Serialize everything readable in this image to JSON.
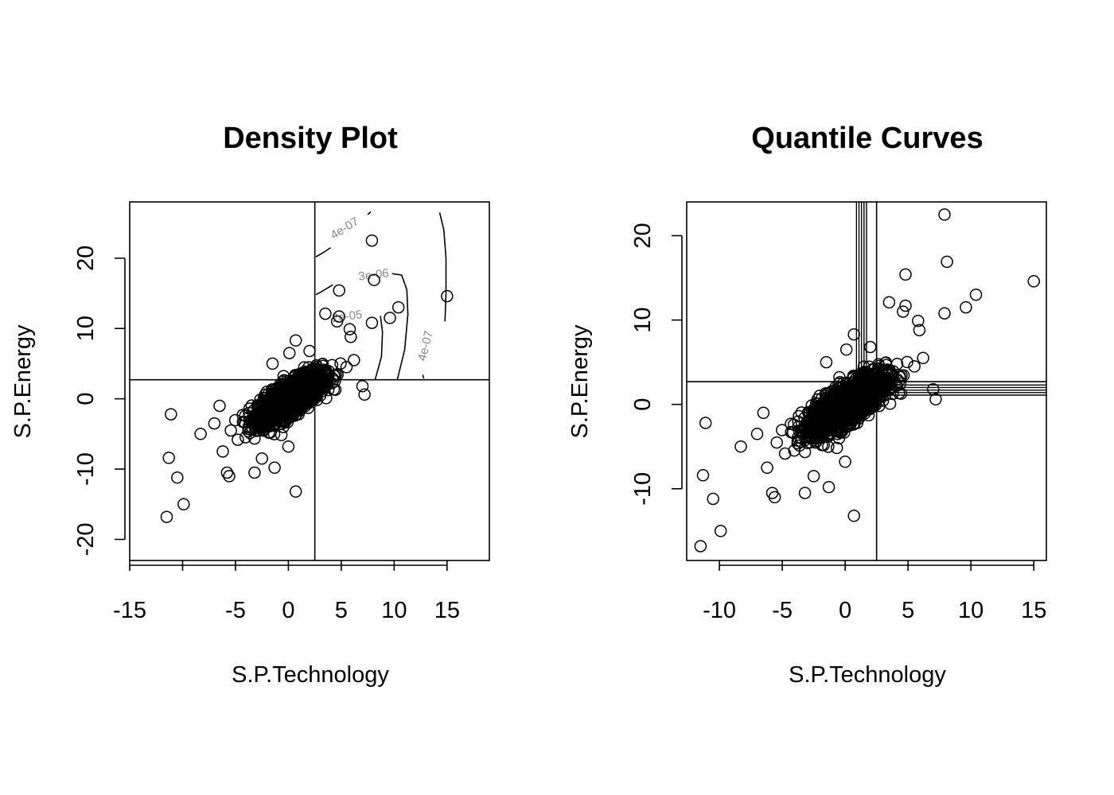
{
  "chart_data": [
    {
      "type": "scatter",
      "title": "Density Plot",
      "xlabel": "S.P.Technology",
      "ylabel": "S.P.Energy",
      "xlim": [
        -15,
        19
      ],
      "ylim": [
        -23,
        28
      ],
      "x_ticks": [
        -15,
        -10,
        -5,
        0,
        5,
        10,
        15
      ],
      "x_tick_labels": [
        "-15",
        "",
        "-5",
        "0",
        "5",
        "10",
        "15"
      ],
      "y_ticks": [
        -20,
        -10,
        0,
        10,
        20
      ],
      "y_tick_labels": [
        "-20",
        "-10",
        "0",
        "10",
        "20"
      ],
      "grid": false,
      "reference_lines": {
        "vertical_x": 2.5,
        "horizontal_y": 2.7
      },
      "contour_labels": [
        "4e-07",
        "3e-06",
        "2e-05",
        "4e-07"
      ],
      "outliers": [
        {
          "x": -11.5,
          "y": -16.8
        },
        {
          "x": -11.3,
          "y": -8.4
        },
        {
          "x": -11.1,
          "y": -2.2
        },
        {
          "x": -10.5,
          "y": -11.2
        },
        {
          "x": -9.9,
          "y": -15.0
        },
        {
          "x": -8.3,
          "y": -5.0
        },
        {
          "x": -5.8,
          "y": -10.5
        },
        {
          "x": -5.6,
          "y": -11.0
        },
        {
          "x": -3.2,
          "y": -10.5
        },
        {
          "x": -1.3,
          "y": -9.8
        },
        {
          "x": 0.7,
          "y": -13.2
        },
        {
          "x": 0.7,
          "y": 8.3
        },
        {
          "x": 4.8,
          "y": 15.4
        },
        {
          "x": 7.9,
          "y": 22.5
        },
        {
          "x": 8.1,
          "y": 16.9
        },
        {
          "x": 3.5,
          "y": 12.1
        },
        {
          "x": 4.6,
          "y": 11.0
        },
        {
          "x": 4.8,
          "y": 11.7
        },
        {
          "x": 5.8,
          "y": 9.9
        },
        {
          "x": 5.9,
          "y": 8.8
        },
        {
          "x": 7.9,
          "y": 10.8
        },
        {
          "x": 9.6,
          "y": 11.5
        },
        {
          "x": 10.4,
          "y": 13.0
        },
        {
          "x": 15.0,
          "y": 14.6
        },
        {
          "x": 7.0,
          "y": 1.8
        },
        {
          "x": 7.2,
          "y": 0.6
        },
        {
          "x": -6.5,
          "y": -1.0
        },
        {
          "x": -7.0,
          "y": -3.5
        },
        {
          "x": -6.2,
          "y": -7.5
        },
        {
          "x": -2.5,
          "y": -8.5
        },
        {
          "x": 0.0,
          "y": -6.8
        },
        {
          "x": 2.0,
          "y": 6.8
        },
        {
          "x": -1.5,
          "y": 5.0
        },
        {
          "x": 0.1,
          "y": 6.5
        },
        {
          "x": 5.5,
          "y": 4.5
        },
        {
          "x": 6.2,
          "y": 5.5
        }
      ],
      "cloud": {
        "n": 1800,
        "center": [
          0.2,
          0.1
        ],
        "sd_x": 1.5,
        "sd_y": 1.7,
        "correlation": 0.75
      }
    },
    {
      "type": "scatter",
      "title": "Quantile Curves",
      "xlabel": "S.P.Technology",
      "ylabel": "S.P.Energy",
      "xlim": [
        -12.6,
        16.0
      ],
      "ylim": [
        -18.5,
        24.0
      ],
      "x_ticks": [
        -10,
        -5,
        0,
        5,
        10,
        15
      ],
      "x_tick_labels": [
        "-10",
        "-5",
        "0",
        "5",
        "10",
        "15"
      ],
      "y_ticks": [
        -10,
        0,
        10,
        20
      ],
      "y_tick_labels": [
        "-10",
        "0",
        "10",
        "20"
      ],
      "grid": false,
      "reference_lines": {
        "vertical_x": 2.5,
        "horizontal_y": 2.7
      },
      "quantile_verticals": [
        0.9,
        1.1,
        1.3,
        1.5,
        1.7
      ],
      "quantile_horizontals": [
        1.1,
        1.4,
        1.7,
        2.0,
        2.3
      ],
      "outliers": "same as Density Plot",
      "cloud": "same as Density Plot"
    }
  ]
}
